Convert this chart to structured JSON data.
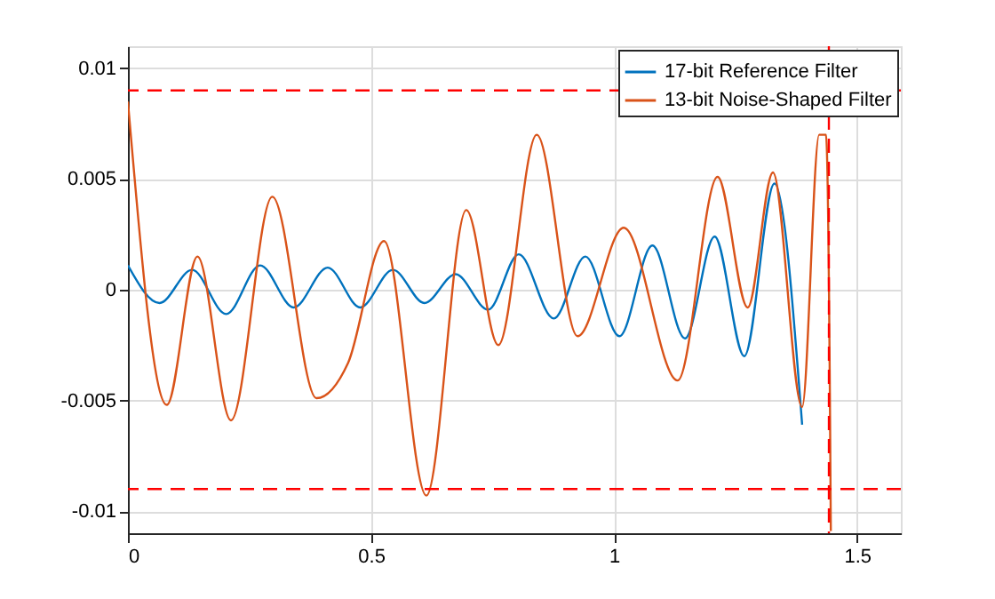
{
  "chart_data": {
    "type": "line",
    "xlim": [
      0,
      1.59
    ],
    "ylim": [
      -0.011,
      0.011
    ],
    "xticks": [
      0,
      0.5,
      1,
      1.5
    ],
    "yticks": [
      -0.01,
      -0.005,
      0,
      0.005,
      0.01
    ],
    "grid": true,
    "legend": "top right",
    "line_style": "solid",
    "marker": "none",
    "series": [
      {
        "name": "17-bit Reference Filter",
        "color": "#0072bd",
        "x": [
          0,
          0.065,
          0.132,
          0.202,
          0.272,
          0.341,
          0.411,
          0.478,
          0.545,
          0.61,
          0.674,
          0.741,
          0.804,
          0.876,
          0.941,
          1.011,
          1.079,
          1.146,
          1.207,
          1.268,
          1.33,
          1.387
        ],
        "values": [
          0.0011,
          -0.0006,
          0.0009,
          -0.0011,
          0.0011,
          -0.0008,
          0.001,
          -0.0008,
          0.0009,
          -0.0006,
          0.0007,
          -0.0009,
          0.0016,
          -0.0013,
          0.0015,
          -0.0021,
          0.002,
          -0.0022,
          0.0024,
          -0.003,
          0.0048,
          -0.0061
        ]
      },
      {
        "name": "13-bit Noise-Shaped Filter",
        "color": "#d95319",
        "x": [
          0,
          0.08,
          0.143,
          0.212,
          0.297,
          0.388,
          0.453,
          0.527,
          0.614,
          0.696,
          0.762,
          0.841,
          0.925,
          1.02,
          1.131,
          1.213,
          1.275,
          1.327,
          1.387,
          1.422,
          1.436,
          1.444,
          1.446
        ],
        "values": [
          0.0085,
          -0.0052,
          0.0015,
          -0.0059,
          0.0042,
          -0.0049,
          -0.0033,
          0.0022,
          -0.0093,
          0.0036,
          -0.0025,
          0.007,
          -0.0021,
          0.0028,
          -0.0041,
          0.0051,
          -0.0008,
          0.0053,
          -0.0053,
          0.007,
          0.007,
          -0.0046,
          -0.0109
        ]
      }
    ],
    "ref_lines": [
      {
        "axis": "y",
        "value": 0.009,
        "color": "#ff0000",
        "line_style": "dashed"
      },
      {
        "axis": "y",
        "value": -0.009,
        "color": "#ff0000",
        "line_style": "dashed"
      },
      {
        "axis": "x",
        "value": 1.442,
        "color": "#ff0000",
        "line_style": "dashed"
      }
    ]
  }
}
